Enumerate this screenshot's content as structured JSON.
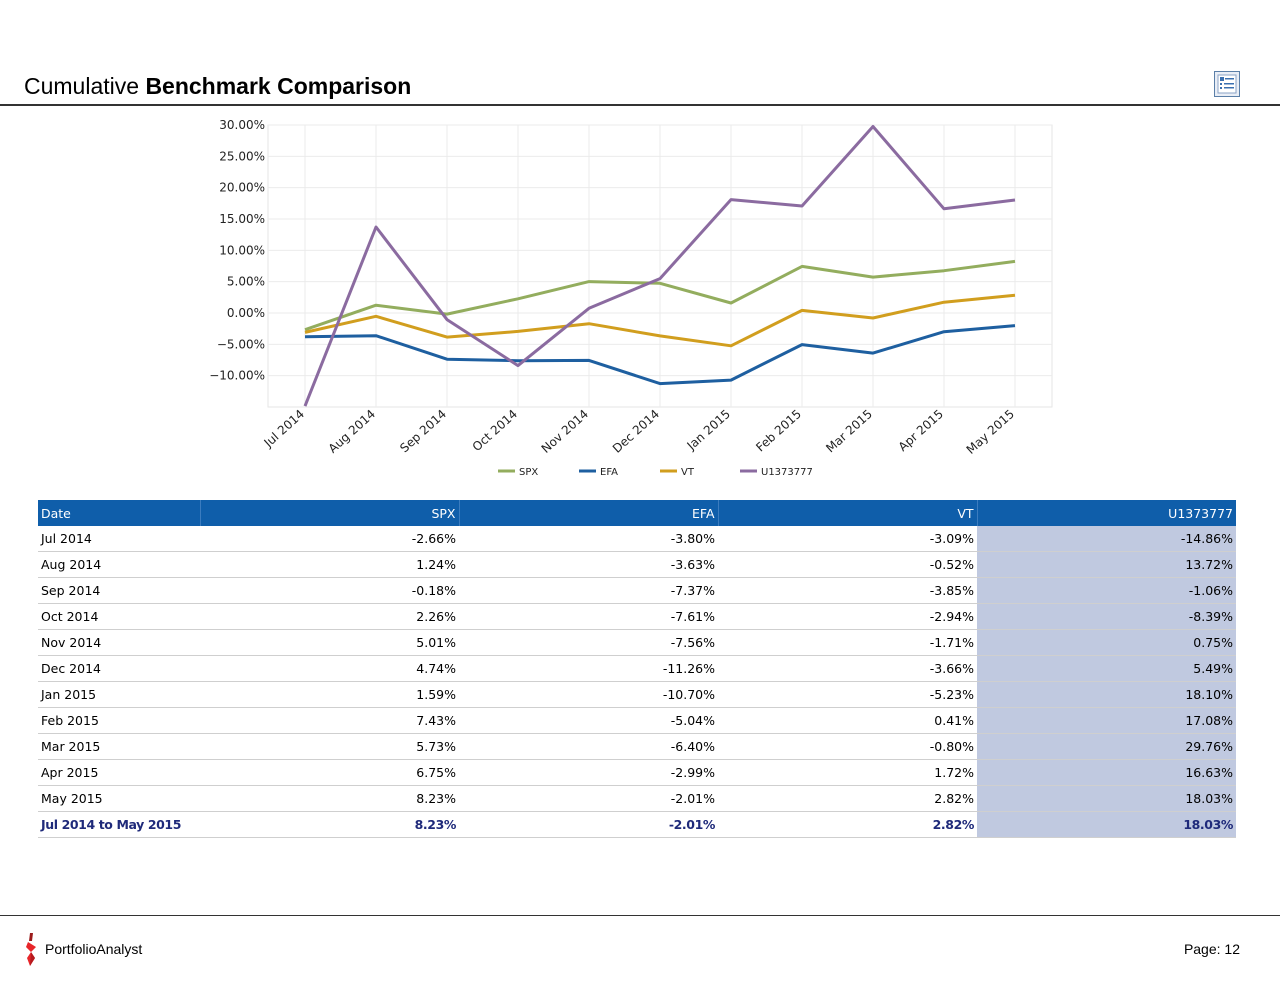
{
  "header": {
    "title_prefix": "Cumulative",
    "title_bold": "Benchmark Comparison",
    "icon": "report-list-icon"
  },
  "chart_data": {
    "type": "line",
    "title": "",
    "xlabel": "",
    "ylabel": "",
    "categories": [
      "Jul 2014",
      "Aug 2014",
      "Sep 2014",
      "Oct 2014",
      "Nov 2014",
      "Dec 2014",
      "Jan 2015",
      "Feb 2015",
      "Mar 2015",
      "Apr 2015",
      "May 2015"
    ],
    "series": [
      {
        "name": "SPX",
        "color": "#93ad5e",
        "values": [
          -2.66,
          1.24,
          -0.18,
          2.26,
          5.01,
          4.74,
          1.59,
          7.43,
          5.73,
          6.75,
          8.23
        ]
      },
      {
        "name": "EFA",
        "color": "#1e5fa0",
        "values": [
          -3.8,
          -3.63,
          -7.37,
          -7.61,
          -7.56,
          -11.26,
          -10.7,
          -5.04,
          -6.4,
          -2.99,
          -2.01
        ]
      },
      {
        "name": "VT",
        "color": "#d19e1e",
        "values": [
          -3.09,
          -0.52,
          -3.85,
          -2.94,
          -1.71,
          -3.66,
          -5.23,
          0.41,
          -0.8,
          1.72,
          2.82
        ]
      },
      {
        "name": "U1373777",
        "color": "#8b6ba0",
        "values": [
          -14.86,
          13.72,
          -1.06,
          -8.39,
          0.75,
          5.49,
          18.1,
          17.08,
          29.76,
          16.63,
          18.03
        ]
      }
    ],
    "ylim": [
      -15,
      30
    ],
    "yticks": [
      30,
      25,
      20,
      15,
      10,
      5,
      0,
      -5,
      -10
    ],
    "ytick_labels": [
      "30.00%",
      "25.00%",
      "20.00%",
      "15.00%",
      "10.00%",
      "5.00%",
      "0.00%",
      "−5.00%",
      "−10.00%"
    ],
    "grid": true,
    "legend_position": "bottom"
  },
  "table": {
    "headers": [
      "Date",
      "SPX",
      "EFA",
      "VT",
      "U1373777"
    ],
    "rows": [
      [
        "Jul 2014",
        "-2.66%",
        "-3.80%",
        "-3.09%",
        "-14.86%"
      ],
      [
        "Aug 2014",
        "1.24%",
        "-3.63%",
        "-0.52%",
        "13.72%"
      ],
      [
        "Sep 2014",
        "-0.18%",
        "-7.37%",
        "-3.85%",
        "-1.06%"
      ],
      [
        "Oct 2014",
        "2.26%",
        "-7.61%",
        "-2.94%",
        "-8.39%"
      ],
      [
        "Nov 2014",
        "5.01%",
        "-7.56%",
        "-1.71%",
        "0.75%"
      ],
      [
        "Dec 2014",
        "4.74%",
        "-11.26%",
        "-3.66%",
        "5.49%"
      ],
      [
        "Jan 2015",
        "1.59%",
        "-10.70%",
        "-5.23%",
        "18.10%"
      ],
      [
        "Feb 2015",
        "7.43%",
        "-5.04%",
        "0.41%",
        "17.08%"
      ],
      [
        "Mar 2015",
        "5.73%",
        "-6.40%",
        "-0.80%",
        "29.76%"
      ],
      [
        "Apr 2015",
        "6.75%",
        "-2.99%",
        "1.72%",
        "16.63%"
      ],
      [
        "May 2015",
        "8.23%",
        "-2.01%",
        "2.82%",
        "18.03%"
      ]
    ],
    "total": [
      "Jul 2014 to May 2015",
      "8.23%",
      "-2.01%",
      "2.82%",
      "18.03%"
    ],
    "highlight_color": "#c0c9e0",
    "header_color": "#0f5eaa"
  },
  "footer": {
    "brand": "PortfolioAnalyst",
    "page": "Page: 12"
  }
}
